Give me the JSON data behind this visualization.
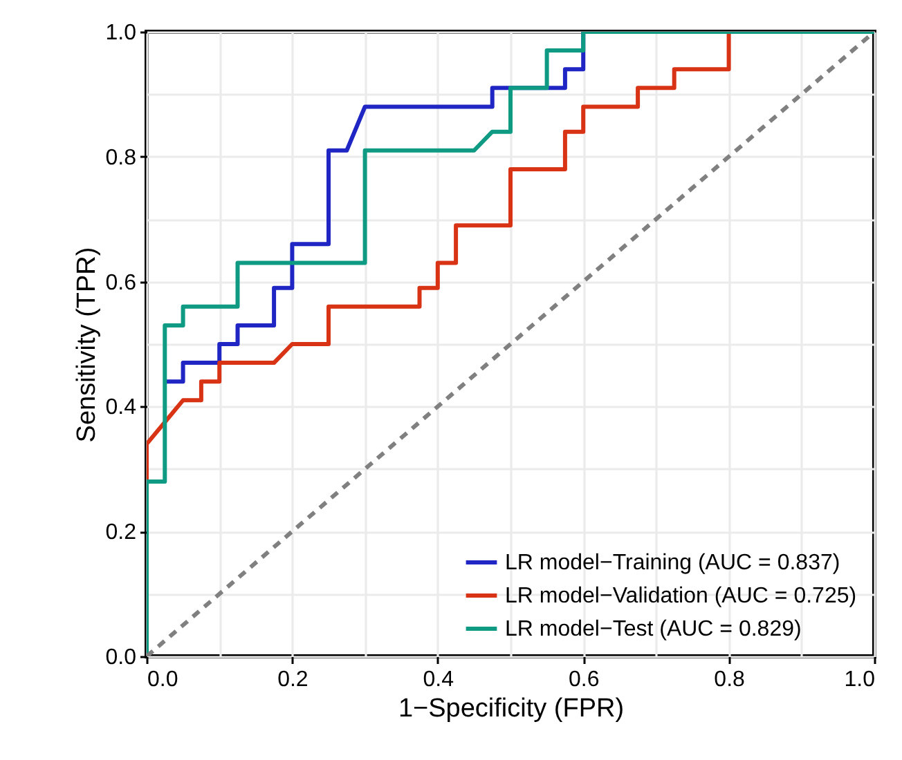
{
  "chart_data": {
    "type": "line",
    "xlabel": "1−Specificity (FPR)",
    "ylabel": "Sensitivity (TPR)",
    "xlim": [
      0,
      1
    ],
    "ylim": [
      0,
      1
    ],
    "xticks": [
      {
        "value": 0,
        "label": "0.0"
      },
      {
        "value": 0.1,
        "label": null
      },
      0.2,
      {
        "value": 0.3,
        "label": null
      },
      0.4,
      {
        "value": 0.5,
        "label": null
      },
      0.6,
      {
        "value": 0.7,
        "label": null
      },
      0.8,
      {
        "value": 0.9,
        "label": null
      },
      {
        "value": 1,
        "label": "1.0"
      }
    ],
    "yticks": [
      {
        "value": 0,
        "label": "0.0"
      },
      {
        "value": 0.1,
        "label": null
      },
      0.2,
      {
        "value": 0.3,
        "label": null
      },
      0.4,
      {
        "value": 0.5,
        "label": null
      },
      0.6,
      {
        "value": 0.7,
        "label": null
      },
      0.8,
      {
        "value": 0.9,
        "label": null
      },
      {
        "value": 1,
        "label": "1.0"
      }
    ],
    "grid": true,
    "legend": "bottom right",
    "marker": "none",
    "series": [
      {
        "name": "LR model−Training (AUC = 0.837)",
        "color": "#1f26c4",
        "x": [
          0.025,
          0.05,
          0.05,
          0.1,
          0.1,
          0.125,
          0.125,
          0.175,
          0.175,
          0.2,
          0.2,
          0.25,
          0.25,
          0.275,
          0.3,
          0.475,
          0.475,
          0.575,
          0.575,
          0.6,
          0.6
        ],
        "values": [
          0.44,
          0.44,
          0.47,
          0.47,
          0.5,
          0.5,
          0.53,
          0.53,
          0.59,
          0.59,
          0.66,
          0.66,
          0.81,
          0.81,
          0.88,
          0.88,
          0.91,
          0.91,
          0.94,
          0.94,
          1
        ]
      },
      {
        "name": "LR model−Validation (AUC = 0.725)",
        "color": "#d93316",
        "x": [
          0,
          0,
          0.05,
          0.075,
          0.075,
          0.1,
          0.1,
          0.175,
          0.2,
          0.25,
          0.25,
          0.375,
          0.375,
          0.4,
          0.4,
          0.425,
          0.425,
          0.5,
          0.5,
          0.575,
          0.575,
          0.6,
          0.6,
          0.675,
          0.675,
          0.725,
          0.725,
          0.8,
          0.8
        ],
        "values": [
          0.28,
          0.34,
          0.41,
          0.41,
          0.44,
          0.44,
          0.47,
          0.47,
          0.5,
          0.5,
          0.56,
          0.56,
          0.59,
          0.59,
          0.63,
          0.63,
          0.69,
          0.69,
          0.78,
          0.78,
          0.84,
          0.84,
          0.88,
          0.88,
          0.91,
          0.91,
          0.94,
          0.94,
          1
        ]
      },
      {
        "name": "LR model−Test (AUC = 0.829)",
        "color": "#0f9b83",
        "x": [
          0,
          0,
          0.025,
          0.025,
          0.05,
          0.05,
          0.125,
          0.125,
          0.3,
          0.3,
          0.45,
          0.475,
          0.5,
          0.5,
          0.55,
          0.55,
          0.6,
          0.6,
          1
        ],
        "values": [
          0,
          0.28,
          0.28,
          0.53,
          0.53,
          0.56,
          0.56,
          0.63,
          0.63,
          0.81,
          0.81,
          0.84,
          0.84,
          0.91,
          0.91,
          0.97,
          0.97,
          1,
          1
        ]
      },
      {
        "color": "#808080",
        "line_style": "dashed",
        "x": [
          0,
          1
        ],
        "values": [
          0,
          1
        ]
      }
    ]
  }
}
